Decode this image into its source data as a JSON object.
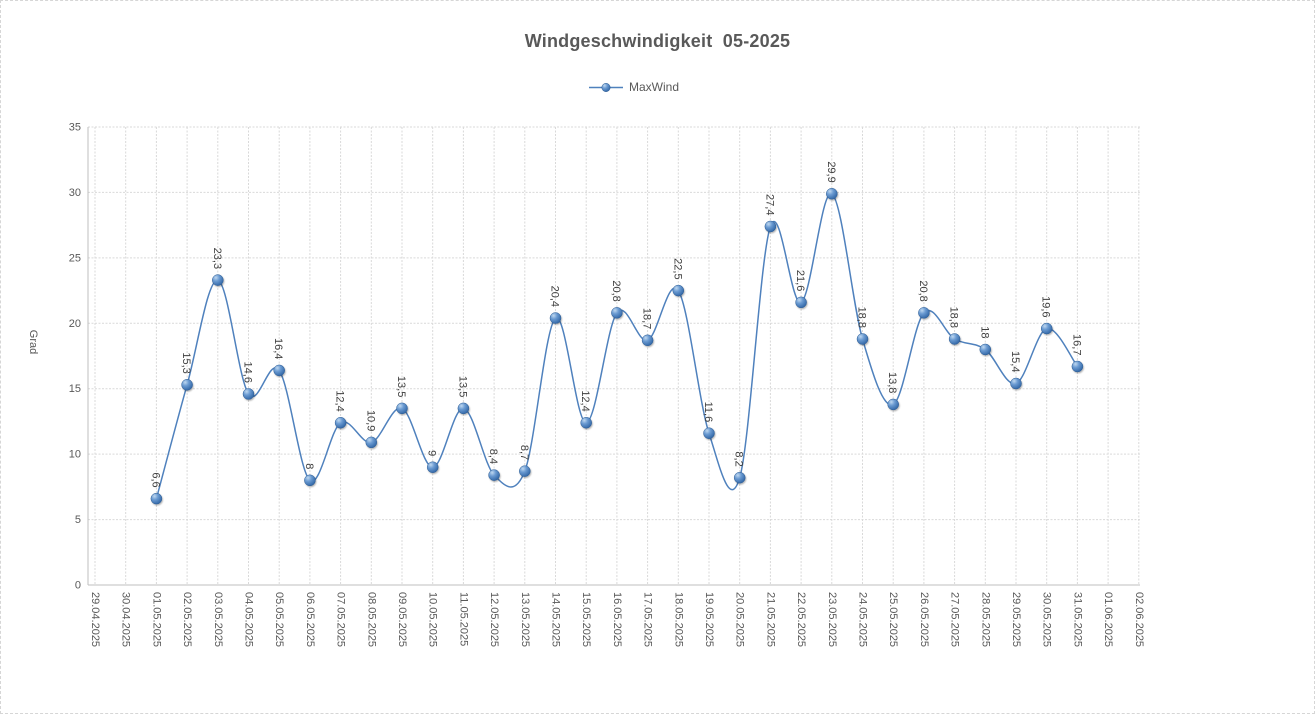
{
  "chart": {
    "title": "Windgeschwindigkeit  05-2025",
    "legend_label": "MaxWind",
    "y_axis_title": "Grad"
  },
  "style": {
    "line_color": "#4F81BD",
    "marker_highlight": "#BFD8F0",
    "marker_mid": "#6B9BD2",
    "marker_deep": "#3C70AE",
    "marker_dark": "#285A96",
    "marker_edge": "#2D5C93",
    "gridline_color": "#D9D9D9",
    "axis_line_color": "#BFBFBF",
    "axis_text_color": "#595959",
    "data_label_color": "#3F3F3F",
    "title_color": "#595959"
  },
  "chart_data": {
    "type": "line",
    "smooth": true,
    "grid": true,
    "legend_position": "top",
    "title": "Windgeschwindigkeit 05-2025",
    "ylabel": "Grad",
    "xlabel": "",
    "ylim": [
      0,
      35
    ],
    "ytick_step": 5,
    "yticks": [
      0,
      5,
      10,
      15,
      20,
      25,
      30,
      35
    ],
    "x_axis_labels": [
      "29.04.2025",
      "30.04.2025",
      "01.05.2025",
      "02.05.2025",
      "03.05.2025",
      "04.05.2025",
      "05.05.2025",
      "06.05.2025",
      "07.05.2025",
      "08.05.2025",
      "09.05.2025",
      "10.05.2025",
      "11.05.2025",
      "12.05.2025",
      "13.05.2025",
      "14.05.2025",
      "15.05.2025",
      "16.05.2025",
      "17.05.2025",
      "18.05.2025",
      "19.05.2025",
      "20.05.2025",
      "21.05.2025",
      "22.05.2025",
      "23.05.2025",
      "24.05.2025",
      "25.05.2025",
      "26.05.2025",
      "27.05.2025",
      "28.05.2025",
      "29.05.2025",
      "30.05.2025",
      "31.05.2025",
      "01.06.2025",
      "02.06.2025"
    ],
    "categories": [
      "01.05.2025",
      "02.05.2025",
      "03.05.2025",
      "04.05.2025",
      "05.05.2025",
      "06.05.2025",
      "07.05.2025",
      "08.05.2025",
      "09.05.2025",
      "10.05.2025",
      "11.05.2025",
      "12.05.2025",
      "13.05.2025",
      "14.05.2025",
      "15.05.2025",
      "16.05.2025",
      "17.05.2025",
      "18.05.2025",
      "19.05.2025",
      "20.05.2025",
      "21.05.2025",
      "22.05.2025",
      "23.05.2025",
      "24.05.2025",
      "25.05.2025",
      "26.05.2025",
      "27.05.2025",
      "28.05.2025",
      "29.05.2025",
      "30.05.2025",
      "31.05.2025"
    ],
    "series": [
      {
        "name": "MaxWind",
        "values": [
          6.6,
          15.3,
          23.3,
          14.6,
          16.4,
          8,
          12.4,
          10.9,
          13.5,
          9,
          13.5,
          8.4,
          8.7,
          20.4,
          12.4,
          20.8,
          18.7,
          22.5,
          11.6,
          8.2,
          27.4,
          21.6,
          29.9,
          18.8,
          13.8,
          20.8,
          18.8,
          18,
          15.4,
          19.6,
          16.7
        ],
        "data_labels": [
          "6,6",
          "15,3",
          "23,3",
          "14,6",
          "16,4",
          "8",
          "12,4",
          "10,9",
          "13,5",
          "9",
          "13,5",
          "8,4",
          "8,7",
          "20,4",
          "12,4",
          "20,8",
          "18,7",
          "22,5",
          "11,6",
          "8,2",
          "27,4",
          "21,6",
          "29,9",
          "18,8",
          "13,8",
          "20,8",
          "18,8",
          "18",
          "15,4",
          "19,6",
          "16,7"
        ]
      }
    ]
  }
}
